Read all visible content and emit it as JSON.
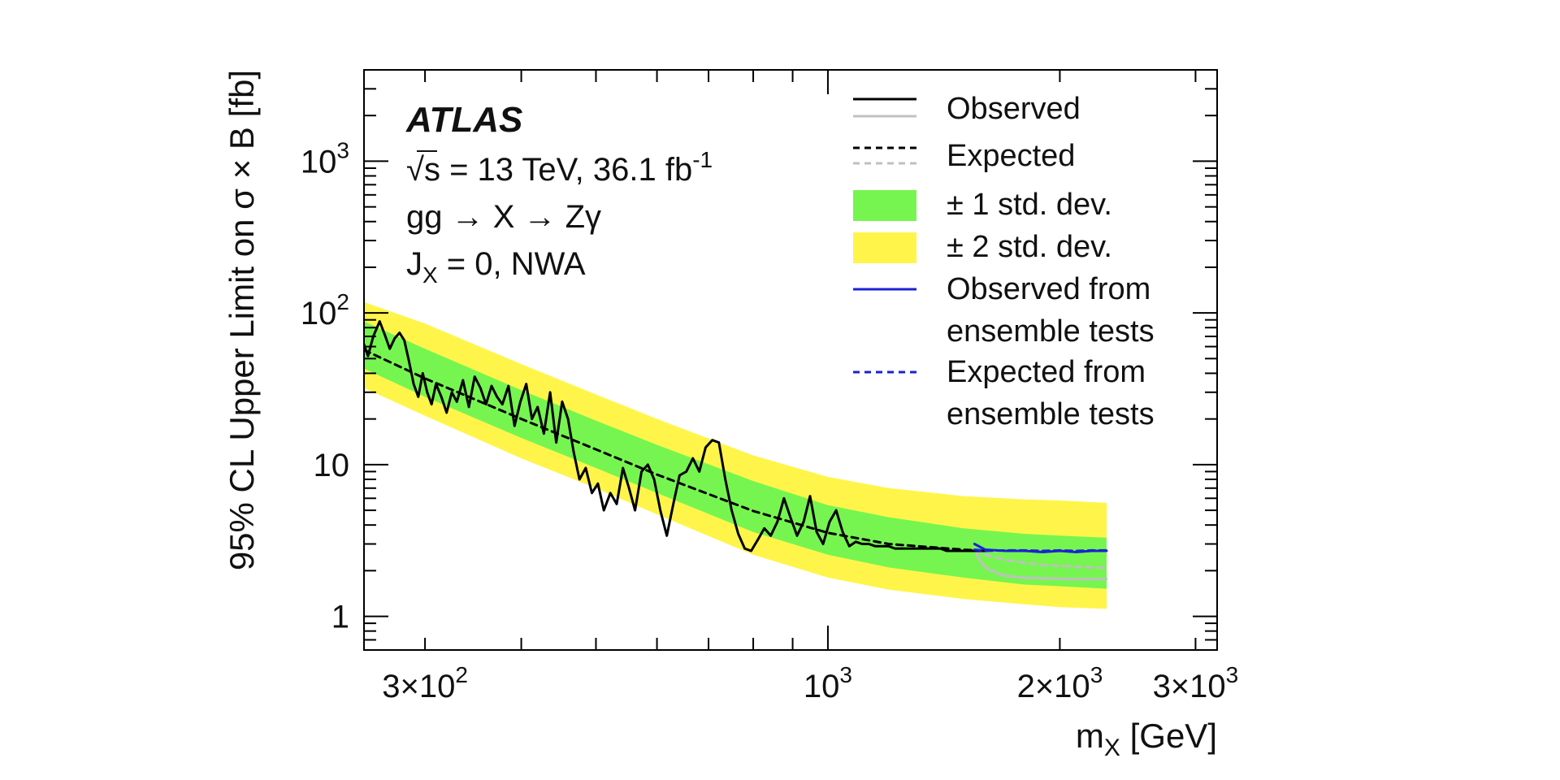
{
  "chart_data": {
    "type": "line",
    "experiment": "ATLAS",
    "annotations": {
      "line1_sqrt": "√s = 13 TeV, 36.1 fb",
      "line1_sup": "-1",
      "line2": "gg → X → Zγ",
      "line3_main": "J",
      "line3_sub": "X",
      "line3_rest": " = 0, NWA"
    },
    "xlabel_main": "m",
    "xlabel_sub": "X",
    "xlabel_rest": " [GeV]",
    "ylabel": "95% CL Upper Limit on σ × B [fb]",
    "x_scale": "log",
    "y_scale": "log",
    "xlim": [
      250,
      3200
    ],
    "ylim": [
      0.6,
      4000
    ],
    "x_ticks": [
      {
        "value": 300,
        "label": "3×10",
        "exp": "2"
      },
      {
        "value": 1000,
        "label": "10",
        "exp": "3"
      },
      {
        "value": 2000,
        "label": "2×10",
        "exp": "3"
      },
      {
        "value": 3000,
        "label": "3×10",
        "exp": "3"
      }
    ],
    "y_ticks": [
      {
        "value": 1,
        "label": "1",
        "exp": ""
      },
      {
        "value": 10,
        "label": "10",
        "exp": ""
      },
      {
        "value": 100,
        "label": "10",
        "exp": "2"
      },
      {
        "value": 1000,
        "label": "10",
        "exp": "3"
      }
    ],
    "colors": {
      "band1": "#76f550",
      "band2": "#fff54a",
      "observed": "#000000",
      "ensemble": "#1a22d6",
      "asymptotic_high": "#c0c0c0"
    },
    "legend": {
      "placement": "top-right",
      "observed": "Observed",
      "expected": "Expected",
      "one_sigma": "± 1 std. dev.",
      "two_sigma": "± 2 std. dev.",
      "obs_ensemble_1": "Observed from",
      "obs_ensemble_2": "ensemble tests",
      "exp_ensemble_1": "Expected from",
      "exp_ensemble_2": "ensemble tests"
    },
    "series": [
      {
        "name": "Expected",
        "x": [
          250,
          300,
          400,
          500,
          600,
          800,
          1000,
          1200,
          1500,
          1600
        ],
        "values": [
          57,
          37,
          20,
          12.6,
          8.6,
          4.95,
          3.55,
          3.0,
          2.75,
          2.7
        ]
      },
      {
        "name": "± 1 std. dev.",
        "x": [
          250,
          300,
          400,
          500,
          600,
          800,
          1000,
          1200,
          1500,
          1800,
          2000,
          2300
        ],
        "upper": [
          88,
          58,
          31,
          19.5,
          13.5,
          7.8,
          5.4,
          4.5,
          3.8,
          3.5,
          3.4,
          3.3
        ],
        "lower": [
          43,
          28,
          15,
          9.5,
          6.5,
          3.6,
          2.55,
          2.1,
          1.8,
          1.62,
          1.58,
          1.52
        ]
      },
      {
        "name": "± 2 std. dev.",
        "x": [
          250,
          300,
          400,
          500,
          600,
          800,
          1000,
          1200,
          1500,
          1800,
          2000,
          2300
        ],
        "upper": [
          118,
          85,
          46,
          29,
          20,
          11.5,
          8.3,
          7.0,
          6.2,
          5.9,
          5.8,
          5.6
        ],
        "lower": [
          32,
          21,
          11,
          7.0,
          4.7,
          2.55,
          1.8,
          1.5,
          1.3,
          1.2,
          1.15,
          1.12
        ]
      },
      {
        "name": "Observed",
        "x": [
          250,
          253,
          257,
          262,
          266,
          270,
          274,
          278,
          282,
          286,
          290,
          294,
          298,
          302,
          306,
          310,
          315,
          320,
          325,
          330,
          336,
          342,
          348,
          354,
          360,
          366,
          372,
          378,
          385,
          392,
          399,
          406,
          413,
          420,
          428,
          436,
          444,
          452,
          460,
          468,
          476,
          485,
          494,
          503,
          512,
          522,
          532,
          542,
          552,
          562,
          573,
          584,
          595,
          606,
          618,
          630,
          642,
          655,
          668,
          681,
          694,
          708,
          722,
          736,
          750,
          765,
          780,
          795,
          811,
          827,
          843,
          860,
          877,
          894,
          912,
          930,
          948,
          967,
          986,
          1005,
          1025,
          1045,
          1066,
          1087,
          1108,
          1130,
          1152,
          1175,
          1198,
          1222,
          1246,
          1270,
          1295,
          1320,
          1346,
          1372,
          1399,
          1426,
          1454,
          1482,
          1511,
          1540,
          1570,
          1600
        ],
        "values": [
          62,
          52,
          70,
          88,
          72,
          58,
          68,
          74,
          66,
          48,
          34,
          28,
          40,
          30,
          25,
          34,
          28,
          22,
          30,
          26,
          36,
          24,
          38,
          32,
          25,
          33,
          28,
          25,
          33,
          18,
          26,
          34,
          20,
          24,
          16,
          30,
          14,
          26,
          20,
          12,
          8,
          9.5,
          6.5,
          7.5,
          5.0,
          6.5,
          5.5,
          9.5,
          7.0,
          5.0,
          9.0,
          10,
          8,
          5,
          3.4,
          5.5,
          8.5,
          9,
          11,
          9,
          13,
          14.5,
          14,
          8,
          5,
          3.5,
          2.8,
          2.7,
          3.2,
          3.8,
          3.4,
          4.2,
          6.0,
          4.5,
          3.4,
          4.2,
          6.2,
          3.6,
          3.0,
          4.2,
          5.0,
          3.6,
          2.9,
          3.1,
          3.0,
          3.0,
          2.9,
          2.9,
          2.9,
          2.8,
          2.8,
          2.8,
          2.8,
          2.8,
          2.8,
          2.8,
          2.8,
          2.7,
          2.7,
          2.7,
          2.7,
          2.7,
          2.7,
          2.7
        ]
      },
      {
        "name": "Observed from ensemble tests",
        "x": [
          1550,
          1600,
          1700,
          1800,
          1900,
          2000,
          2100,
          2200,
          2300
        ],
        "values": [
          3.0,
          2.75,
          2.7,
          2.7,
          2.65,
          2.7,
          2.65,
          2.7,
          2.7
        ]
      },
      {
        "name": "Expected from ensemble tests",
        "x": [
          1550,
          1600,
          1700,
          1800,
          1900,
          2000,
          2100,
          2200,
          2300
        ],
        "values": [
          2.75,
          2.7,
          2.72,
          2.72,
          2.7,
          2.72,
          2.7,
          2.72,
          2.72
        ]
      },
      {
        "name": "Observed (asymptotic, high mass)",
        "x": [
          1550,
          1570,
          1600,
          1650,
          1700,
          1800,
          1900,
          2000,
          2100,
          2200,
          2300
        ],
        "values": [
          2.8,
          2.4,
          2.1,
          1.95,
          1.85,
          1.8,
          1.78,
          1.77,
          1.76,
          1.76,
          1.76
        ]
      },
      {
        "name": "Expected (asymptotic, high mass)",
        "x": [
          1550,
          1600,
          1700,
          1800,
          1900,
          2000,
          2100,
          2200,
          2300
        ],
        "values": [
          2.75,
          2.55,
          2.35,
          2.25,
          2.18,
          2.15,
          2.12,
          2.1,
          2.08
        ]
      }
    ]
  }
}
